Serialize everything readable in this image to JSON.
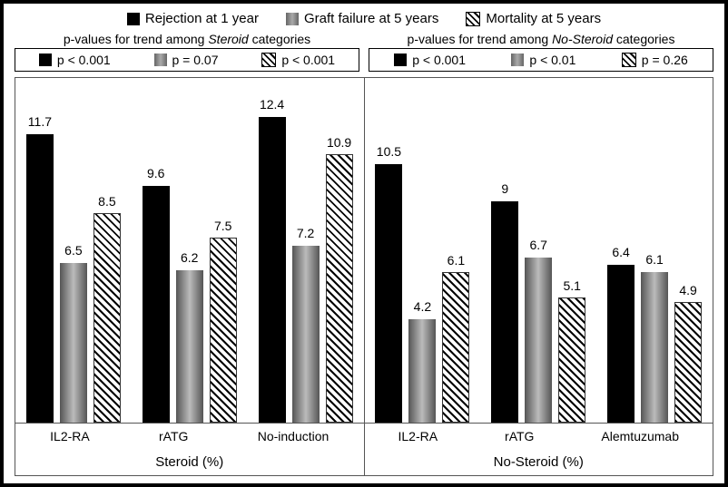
{
  "legend": {
    "series1": "Rejection at 1 year",
    "series2": "Graft failure at 5 years",
    "series3": "Mortality at 5 years"
  },
  "pvalue_left": {
    "title_prefix": "p-values for trend among ",
    "title_em": "Steroid",
    "title_suffix": " categories",
    "p1": "p < 0.001",
    "p2": "p = 0.07",
    "p3": "p < 0.001"
  },
  "pvalue_right": {
    "title_prefix": "p-values for trend among ",
    "title_em": "No-Steroid",
    "title_suffix": " categories",
    "p1": "p < 0.001",
    "p2": "p < 0.01",
    "p3": "p = 0.26"
  },
  "chart": {
    "ymax": 14,
    "panels": [
      {
        "title": "Steroid (%)",
        "groups": [
          {
            "label": "IL2-RA",
            "v1": 11.7,
            "v2": 6.5,
            "v3": 8.5
          },
          {
            "label": "rATG",
            "v1": 9.6,
            "v2": 6.2,
            "v3": 7.5
          },
          {
            "label": "No-induction",
            "v1": 12.4,
            "v2": 7.2,
            "v3": 10.9
          }
        ]
      },
      {
        "title": "No-Steroid (%)",
        "groups": [
          {
            "label": "IL2-RA",
            "v1": 10.5,
            "v2": 4.2,
            "v3": 6.1
          },
          {
            "label": "rATG",
            "v1": 9,
            "v2": 6.7,
            "v3": 5.1
          },
          {
            "label": "Alemtuzumab",
            "v1": 6.4,
            "v2": 6.1,
            "v3": 4.9
          }
        ]
      }
    ]
  }
}
